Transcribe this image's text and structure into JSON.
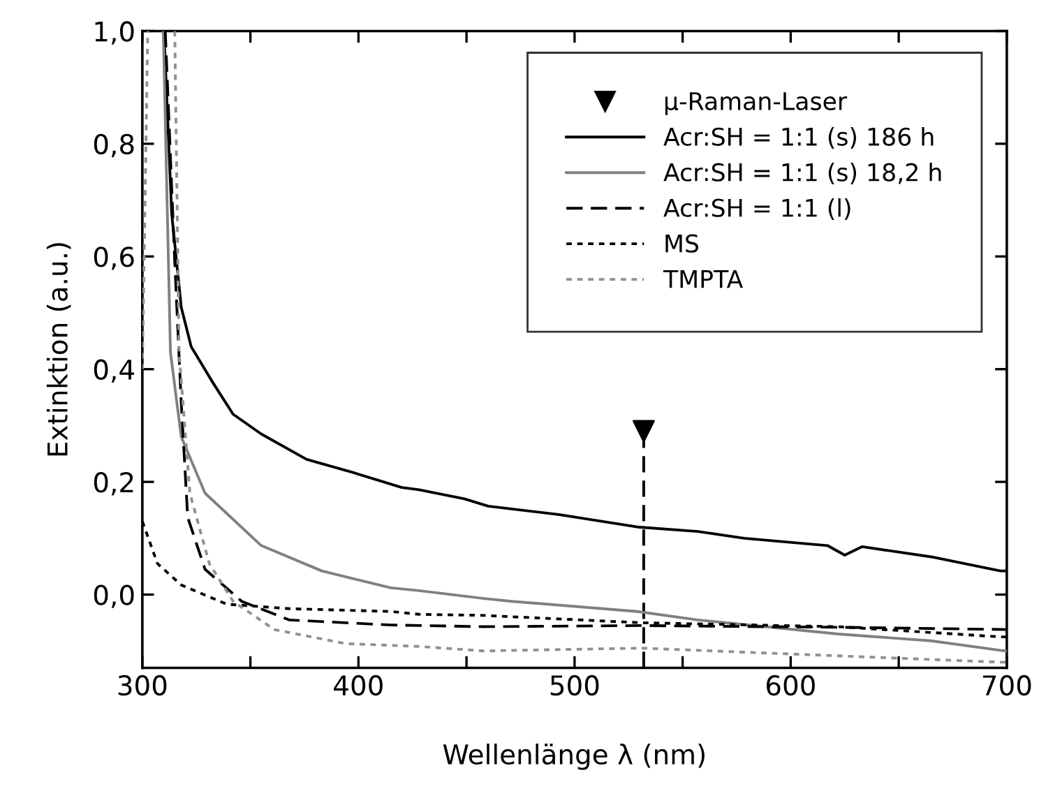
{
  "chart_data": {
    "type": "line",
    "xlabel": "Wellenlänge λ (nm)",
    "ylabel": "Extinktion (a.u.)",
    "xlim": [
      300,
      700
    ],
    "ylim": [
      -0.13,
      1.0
    ],
    "xticks": [
      300,
      {
        "value": 350,
        "label": null
      },
      400,
      {
        "value": 450,
        "label": null
      },
      500,
      {
        "value": 550,
        "label": null
      },
      600,
      {
        "value": 650,
        "label": null
      },
      700
    ],
    "yticks": [
      {
        "value": 0.0,
        "label": "0,0"
      },
      {
        "value": 0.2,
        "label": "0,2"
      },
      {
        "value": 0.4,
        "label": "0,4"
      },
      {
        "value": 0.6,
        "label": "0,6"
      },
      {
        "value": 0.8,
        "label": "0,8"
      },
      {
        "value": 1.0,
        "label": "1,0"
      }
    ],
    "grid": false,
    "legend": "top right",
    "series": [
      {
        "type": "scatter",
        "name": "µ-Raman-Laser",
        "color": "#000000",
        "marker": "triangle",
        "x": [
          532
        ],
        "values": [
          0.29
        ]
      },
      {
        "color": "#000000",
        "line_style": "dashed",
        "x": [
          532,
          532
        ],
        "values": [
          -0.13,
          0.29
        ]
      },
      {
        "name": "Acr:SH = 1:1 (s) 186 h",
        "color": "#000000",
        "line_style": "solid",
        "x": [
          310,
          313.6,
          318,
          322.6,
          332,
          342,
          355,
          376,
          398,
          420,
          428,
          449,
          460,
          492.6,
          529,
          557,
          578.5,
          617,
          625,
          633,
          665,
          697,
          700
        ],
        "values": [
          1.0,
          0.675,
          0.51,
          0.44,
          0.38,
          0.32,
          0.285,
          0.24,
          0.216,
          0.19,
          0.186,
          0.17,
          0.157,
          0.142,
          0.12,
          0.112,
          0.1,
          0.087,
          0.07,
          0.085,
          0.067,
          0.042,
          0.042
        ]
      },
      {
        "name": "Acr:SH = 1:1 (s) 18,2 h",
        "color": "#808080",
        "line_style": "solid",
        "x": [
          309.7,
          313,
          318,
          329,
          355,
          383,
          415,
          428,
          458,
          471,
          529,
          557,
          622,
          665,
          697,
          700
        ],
        "values": [
          1.0,
          0.43,
          0.28,
          0.18,
          0.087,
          0.042,
          0.012,
          0.007,
          -0.007,
          -0.012,
          -0.03,
          -0.045,
          -0.07,
          -0.082,
          -0.099,
          -0.1
        ]
      },
      {
        "name": "Acr:SH = 1:1 (l)",
        "color": "#000000",
        "line_style": "dashed",
        "x": [
          310.6,
          315,
          318,
          321,
          329,
          346,
          368,
          415,
          458,
          531,
          622,
          700
        ],
        "values": [
          1.0,
          0.59,
          0.34,
          0.137,
          0.045,
          -0.012,
          -0.045,
          -0.054,
          -0.057,
          -0.055,
          -0.058,
          -0.062
        ]
      },
      {
        "name": "MS",
        "color": "#000000",
        "line_style": "dotted",
        "x": [
          300,
          307,
          318,
          339,
          368,
          415,
          428,
          458,
          531,
          622,
          697,
          700
        ],
        "values": [
          0.13,
          0.055,
          0.017,
          -0.017,
          -0.025,
          -0.03,
          -0.035,
          -0.037,
          -0.05,
          -0.057,
          -0.075,
          -0.075
        ]
      },
      {
        "name": "TMPTA",
        "color": "#909090",
        "line_style": "dotted",
        "x": [
          300,
          302.5,
          309,
          315,
          317,
          322,
          331,
          342,
          361,
          394,
          428,
          458,
          531,
          697,
          700
        ],
        "values": [
          0.4,
          1.0,
          null,
          1.0,
          0.43,
          0.18,
          0.055,
          -0.012,
          -0.062,
          -0.087,
          -0.092,
          -0.1,
          -0.095,
          -0.12,
          -0.12
        ]
      }
    ]
  }
}
